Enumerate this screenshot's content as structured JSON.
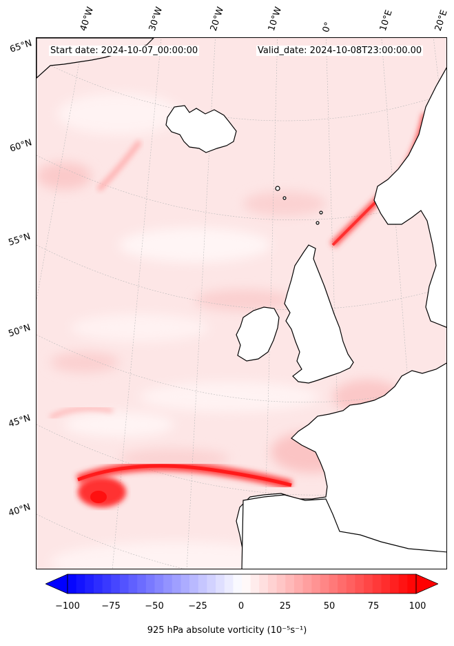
{
  "header": {
    "start_date": "Start date: 2024-10-07_00:00:00",
    "valid_date": "Valid_date: 2024-10-08T23:00:00.00"
  },
  "lon_labels": [
    "40°W",
    "30°W",
    "20°W",
    "10°W",
    "0°",
    "10°E",
    "20°E"
  ],
  "lat_labels": [
    "65°N",
    "60°N",
    "55°N",
    "50°N",
    "45°N",
    "40°N"
  ],
  "colorbar": {
    "min": -100,
    "max": 100,
    "ticks": [
      "−100",
      "−75",
      "−50",
      "−25",
      "0",
      "25",
      "50",
      "75",
      "100"
    ],
    "low_color": "#0000ff",
    "high_color": "#ff0000",
    "label": "925 hPa absolute vorticity (10⁻⁵s⁻¹)"
  },
  "map": {
    "field": "925 hPa absolute vorticity",
    "background_color": "#fde6e6",
    "land_color": "#ffffff",
    "coastline_color": "#000000"
  }
}
